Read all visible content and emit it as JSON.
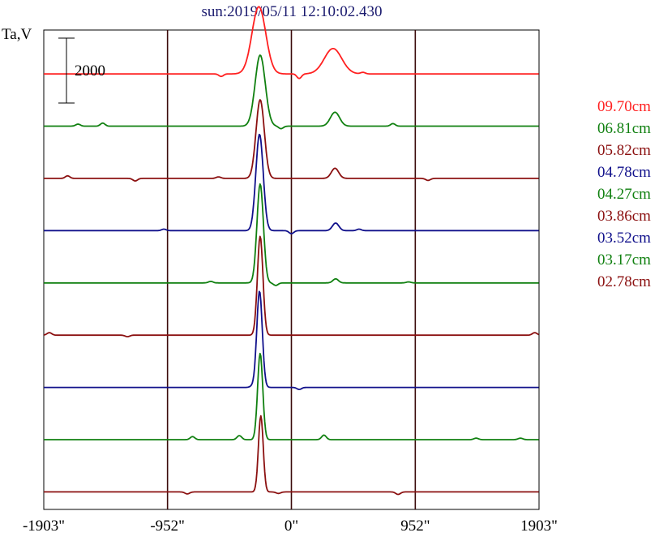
{
  "title": "sun:2019/05/11 12:10:02.430",
  "chart_data": {
    "type": "line",
    "title": "sun:2019/05/11 12:10:02.430",
    "ylabel": "Ta,V",
    "xlabel": "",
    "x_tick_labels": [
      "-1903\"",
      "-952\"",
      "0\"",
      "952\"",
      "1903\""
    ],
    "x_ticks": [
      -1903,
      -952,
      0,
      952,
      1903
    ],
    "xlim": [
      -1903,
      1903
    ],
    "scale_bar_label": "2000",
    "scale_bar_value": 2000,
    "grid": "vertical lines at -952, 0, 952",
    "legend_position": "right",
    "series_offset_step": 2060,
    "series": [
      {
        "name": "09.70cm",
        "color": "#ff2020",
        "baseline": 470,
        "peaks": [
          {
            "x": -250,
            "amp": 2650,
            "w": 75
          },
          {
            "x": 320,
            "amp": 1000,
            "w": 95
          }
        ],
        "bumps": [
          {
            "x": -540,
            "amp": -100
          },
          {
            "x": 60,
            "amp": -180
          },
          {
            "x": 550,
            "amp": 60
          }
        ]
      },
      {
        "name": "06.81cm",
        "color": "#108010",
        "baseline": -1590,
        "peaks": [
          {
            "x": -240,
            "amp": 2800,
            "w": 55
          },
          {
            "x": 335,
            "amp": 550,
            "w": 50
          }
        ],
        "bumps": [
          {
            "x": -1640,
            "amp": 80
          },
          {
            "x": -1450,
            "amp": 120
          },
          {
            "x": -80,
            "amp": -100
          },
          {
            "x": 780,
            "amp": 100
          }
        ]
      },
      {
        "name": "05.82cm",
        "color": "#8b1010",
        "baseline": -3650,
        "peaks": [
          {
            "x": -240,
            "amp": 3100,
            "w": 45
          },
          {
            "x": 335,
            "amp": 400,
            "w": 40
          }
        ],
        "bumps": [
          {
            "x": -1720,
            "amp": 100
          },
          {
            "x": -1200,
            "amp": -100
          },
          {
            "x": -560,
            "amp": 60
          },
          {
            "x": 1050,
            "amp": -80
          }
        ]
      },
      {
        "name": "04.78cm",
        "color": "#10108b",
        "baseline": -5710,
        "peaks": [
          {
            "x": -245,
            "amp": 3800,
            "w": 40
          },
          {
            "x": 340,
            "amp": 300,
            "w": 35
          }
        ],
        "bumps": [
          {
            "x": -980,
            "amp": 60
          },
          {
            "x": 0,
            "amp": -120
          },
          {
            "x": 520,
            "amp": 60
          }
        ]
      },
      {
        "name": "04.27cm",
        "color": "#108010",
        "baseline": -7770,
        "peaks": [
          {
            "x": -240,
            "amp": 3900,
            "w": 35
          },
          {
            "x": 340,
            "amp": 160,
            "w": 30
          }
        ],
        "bumps": [
          {
            "x": -620,
            "amp": 60
          },
          {
            "x": -120,
            "amp": -100
          },
          {
            "x": 900,
            "amp": 40
          }
        ]
      },
      {
        "name": "03.86cm",
        "color": "#8b1010",
        "baseline": -9830,
        "peaks": [
          {
            "x": -240,
            "amp": 3900,
            "w": 30
          }
        ],
        "bumps": [
          {
            "x": -1860,
            "amp": 100
          },
          {
            "x": -1260,
            "amp": -60
          },
          {
            "x": 1870,
            "amp": 100
          }
        ]
      },
      {
        "name": "03.52cm",
        "color": "#10108b",
        "baseline": -11890,
        "peaks": [
          {
            "x": -245,
            "amp": 3800,
            "w": 30
          }
        ],
        "bumps": [
          {
            "x": -300,
            "amp": 50
          },
          {
            "x": 60,
            "amp": -80
          }
        ]
      },
      {
        "name": "03.17cm",
        "color": "#108010",
        "baseline": -13950,
        "peaks": [
          {
            "x": -240,
            "amp": 3400,
            "w": 28
          }
        ],
        "bumps": [
          {
            "x": -760,
            "amp": 120
          },
          {
            "x": -400,
            "amp": 160
          },
          {
            "x": 250,
            "amp": 180
          },
          {
            "x": 1420,
            "amp": 60
          },
          {
            "x": 1760,
            "amp": 60
          }
        ]
      },
      {
        "name": "02.78cm",
        "color": "#8b1010",
        "baseline": -16010,
        "peaks": [
          {
            "x": -235,
            "amp": 3000,
            "w": 26
          }
        ],
        "bumps": [
          {
            "x": -800,
            "amp": -80
          },
          {
            "x": -100,
            "amp": -60
          },
          {
            "x": 820,
            "amp": -100
          }
        ]
      }
    ],
    "ylim": [
      -16700,
      2200
    ]
  }
}
